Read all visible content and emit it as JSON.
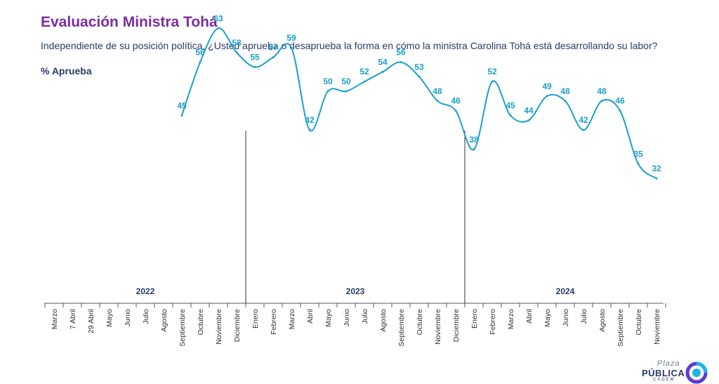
{
  "header": {
    "title": "Evaluación Ministra Tohá",
    "question": "Independiente de su posición política, ¿Usted aprueba o desaprueba la forma en cómo la ministra Carolina Tohá está desarrollando su labor?",
    "metric": "% Aprueba"
  },
  "logo": {
    "line1": "Plaza",
    "line2": "PÚBLICA",
    "line3": "CADEM"
  },
  "chart_data": {
    "type": "line",
    "title": "Evaluación Ministra Tohá",
    "ylabel": "% Aprueba",
    "series_color": "#1aa0cf",
    "categories": [
      "Marzo",
      "7 Abril",
      "29 Abril",
      "Mayo",
      "Junio",
      "Julio",
      "Agosto",
      "Septiembre",
      "Octubre",
      "Noviembre",
      "Diciembre",
      "Enero",
      "Febrero",
      "Marzo",
      "Abril",
      "Mayo",
      "Junio",
      "Julio",
      "Agosto",
      "Septiembre",
      "Octubre",
      "Noviembre",
      "Diciembre",
      "Enero",
      "Febrero",
      "Marzo",
      "Abril",
      "Mayo",
      "Junio",
      "Julio",
      "Agosto",
      "Septiembre",
      "Octubre",
      "Noviembre"
    ],
    "values": [
      null,
      null,
      null,
      null,
      null,
      null,
      null,
      45,
      56,
      63,
      58,
      55,
      57,
      59,
      42,
      50,
      50,
      52,
      54,
      56,
      53,
      48,
      46,
      38,
      52,
      45,
      44,
      49,
      48,
      42,
      48,
      46,
      35,
      32
    ],
    "year_groups": [
      {
        "label": "2022",
        "start": 0,
        "end": 10
      },
      {
        "label": "2023",
        "start": 11,
        "end": 22
      },
      {
        "label": "2024",
        "start": 23,
        "end": 33
      }
    ],
    "ylim": [
      0,
      100
    ],
    "legend": "none"
  }
}
